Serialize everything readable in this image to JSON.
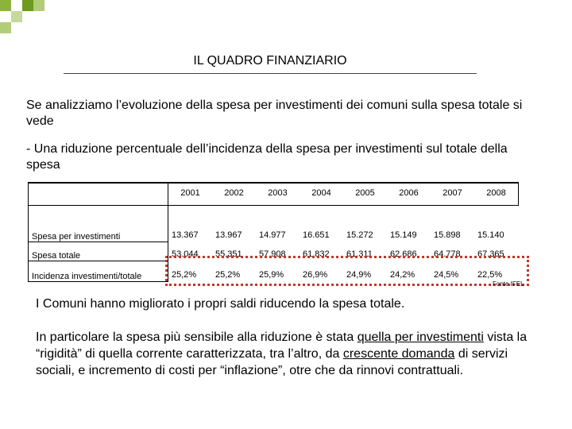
{
  "header": {
    "title": "IL QUADRO FINANZIARIO"
  },
  "intro": [
    "Se analizziamo l’evoluzione della spesa per investimenti dei comuni sulla spesa totale si vede",
    "- Una riduzione percentuale dell’incidenza della spesa per investimenti sul totale della spesa"
  ],
  "table": {
    "columns": [
      "2001",
      "2002",
      "2003",
      "2004",
      "2005",
      "2006",
      "2007",
      "2008"
    ],
    "rows": [
      {
        "label": "Spesa per investimenti",
        "cells": [
          "13.367",
          "13.967",
          "14.977",
          "16.651",
          "15.272",
          "15.149",
          "15.898",
          "15.140"
        ]
      },
      {
        "label": "Spesa totale",
        "cells": [
          "53.044",
          "55.351",
          "57.908",
          "61.832",
          "61.311",
          "62.686",
          "64.778",
          "67.365"
        ]
      },
      {
        "label": "Incidenza investimenti/totale",
        "cells": [
          "25,2%",
          "25,2%",
          "25,9%",
          "26,9%",
          "24,9%",
          "24,2%",
          "24,5%",
          "22,5%"
        ],
        "highlighted": true
      }
    ],
    "source": "Fonte IFEL"
  },
  "conclusion": "I Comuni hanno migliorato i propri saldi riducendo la spesa totale.",
  "detail": [
    {
      "text": "In particolare la spesa più sensibile alla riduzione è stata ",
      "underline": false
    },
    {
      "text": "quella per investimenti",
      "underline": true
    },
    {
      "text": " vista la “rigidità” di quella corrente  caratterizzata, tra l’altro, da ",
      "underline": false
    },
    {
      "text": "crescente domanda",
      "underline": true
    },
    {
      "text": " di servizi sociali, e incremento di costi per “inflazione”, otre che da rinnovi contrattuali.",
      "underline": false
    }
  ]
}
